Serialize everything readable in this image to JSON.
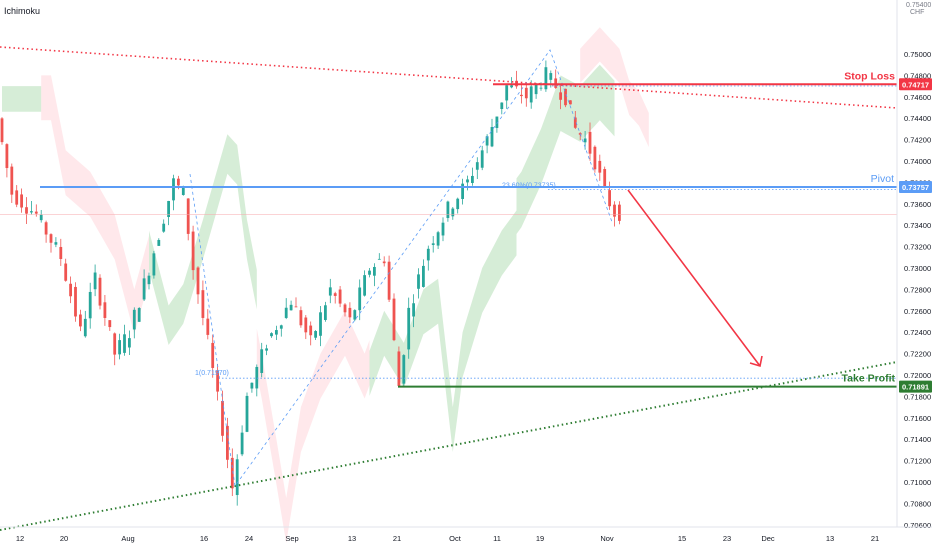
{
  "indicator_label": "Ichimoku",
  "currency": "CHF",
  "chart_data": {
    "type": "candlestick",
    "instrument_quote_currency": "CHF",
    "price_scale_top_label": "0.75400",
    "y_ticks": [
      "0.75000",
      "0.74800",
      "0.74600",
      "0.74400",
      "0.74200",
      "0.74000",
      "0.73800",
      "0.73600",
      "0.73400",
      "0.73200",
      "0.73000",
      "0.72800",
      "0.72600",
      "0.72400",
      "0.72200",
      "0.72000",
      "0.71800",
      "0.71600",
      "0.71400",
      "0.71200",
      "0.71000",
      "0.70800",
      "0.70600"
    ],
    "ylim": [
      0.705,
      0.755
    ],
    "x_ticks": [
      "12",
      "20",
      "Aug",
      "16",
      "24",
      "Sep",
      "13",
      "21",
      "Oct",
      "11",
      "19",
      "Nov",
      "15",
      "23",
      "Dec",
      "13",
      "21"
    ],
    "levels": {
      "stop_loss": {
        "label": "Stop Loss",
        "price": "0.74717",
        "color": "#f23645"
      },
      "pivot": {
        "label": "Pivot",
        "price": "0.73757",
        "color": "#5b9cf6"
      },
      "take_profit": {
        "label": "Take Profit",
        "price": "0.71891",
        "color": "#2e7d32"
      }
    },
    "fib_annotations": [
      {
        "text": "23.60%(0.73735)",
        "price": 0.73735
      },
      {
        "text": "1(0.71970)",
        "price": 0.7197
      }
    ],
    "last_price": 0.735,
    "swing_points": [
      {
        "label": "low",
        "date_index": 48,
        "price": 0.7093
      },
      {
        "label": "high",
        "date_index": 124,
        "price": 0.7495
      }
    ]
  },
  "colors": {
    "up_candle": "#26a69a",
    "down_candle": "#ef5350",
    "cloud_bull": "#a5d6a7",
    "cloud_bear": "#ffcdd2",
    "stop_loss": "#f23645",
    "pivot": "#5b9cf6",
    "take_profit": "#2e7d32",
    "arrow": "#f23645",
    "fib": "#5b9cf6"
  }
}
